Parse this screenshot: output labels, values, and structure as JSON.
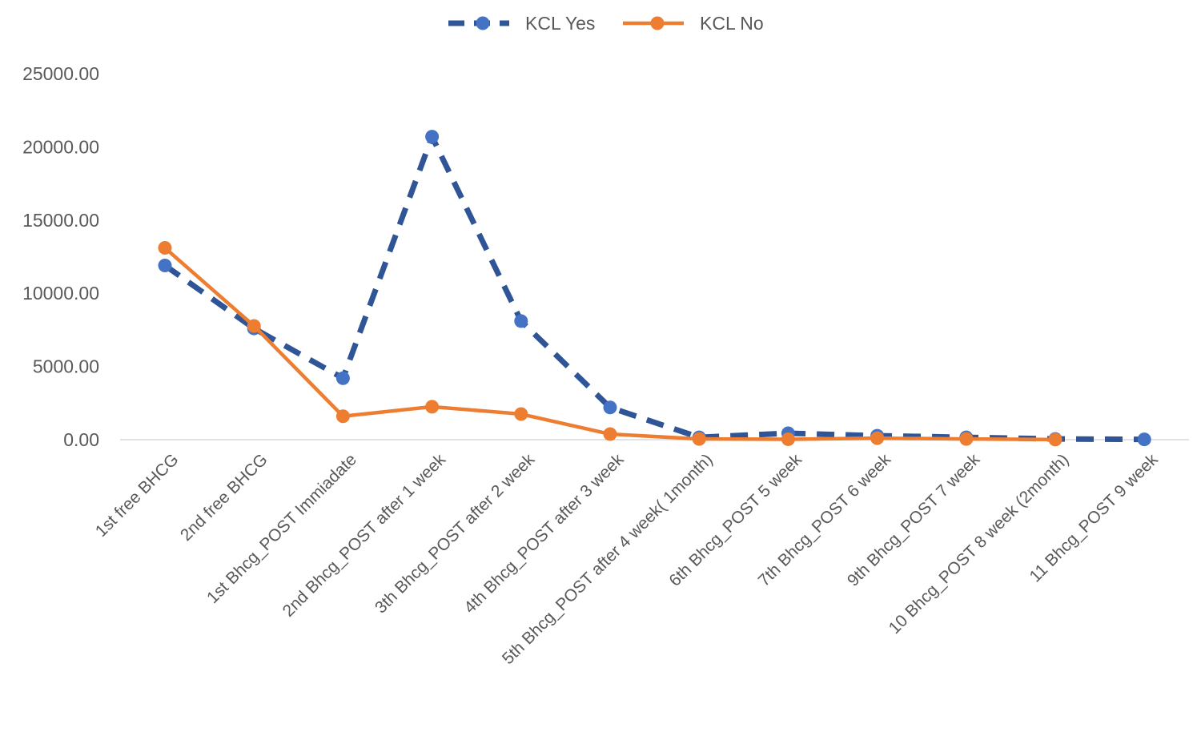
{
  "chart_data": {
    "type": "line",
    "title": "",
    "xlabel": "",
    "ylabel": "",
    "ylim": [
      0,
      25000
    ],
    "yticks": [
      "0.00",
      "5000.00",
      "10000.00",
      "15000.00",
      "20000.00",
      "25000.00"
    ],
    "grid": false,
    "legend_position": "top",
    "categories": [
      "1st free BHCG",
      "2nd  free BHCG",
      "1st Bhcg_POST Immiadate",
      "2nd Bhcg_POST after 1 week",
      "3th Bhcg_POST after 2 week",
      "4th Bhcg_POST after 3 week",
      "5th Bhcg_POST after 4 week( 1month)",
      "6th Bhcg_POST 5 week",
      "7th Bhcg_POST 6 week",
      "9th Bhcg_POST 7 week",
      "10 Bhcg_POST 8 week (2month)",
      "11 Bhcg_POST 9 week"
    ],
    "series": [
      {
        "name": "KCL Yes",
        "color": "#4472C4",
        "line_color": "#2F5597",
        "dashed": true,
        "values": [
          11900,
          7600,
          4200,
          20700,
          8100,
          2200,
          160,
          440,
          270,
          160,
          50,
          20
        ]
      },
      {
        "name": "KCL No",
        "color": "#ED7D31",
        "line_color": "#ED7D31",
        "dashed": false,
        "values": [
          13100,
          7770,
          1600,
          2250,
          1750,
          380,
          50,
          30,
          100,
          50,
          10,
          null
        ]
      }
    ]
  }
}
